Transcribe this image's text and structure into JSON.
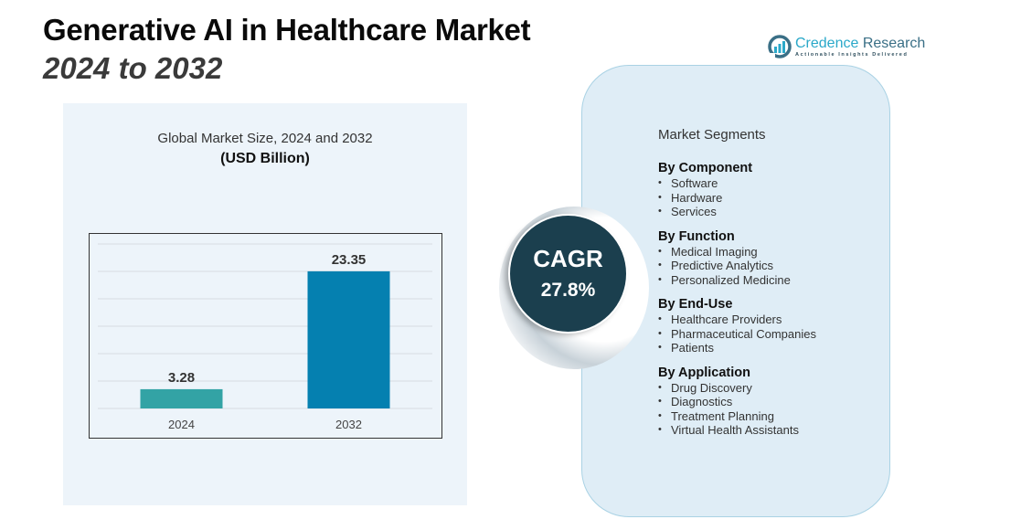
{
  "header": {
    "title": "Generative AI in Healthcare Market",
    "subtitle": "2024 to 2032"
  },
  "logo": {
    "name_part1": "Credence",
    "name_part2": " Research",
    "tagline": "Actionable Insights Delivered",
    "icon": "bar-chart-logo-icon",
    "colors": {
      "primary": "#2aa8c9",
      "secondary": "#3a6f86"
    }
  },
  "chart_data": {
    "type": "bar",
    "title": "Global Market Size, 2024 and 2032",
    "unit_label": "(USD Billion)",
    "categories": [
      "2024",
      "2032"
    ],
    "values": [
      3.28,
      23.35
    ],
    "data_labels": [
      "3.28",
      "23.35"
    ],
    "colors": [
      "#33a3a5",
      "#0580b0"
    ],
    "xlabel": "",
    "ylabel": "",
    "ylim": [
      0,
      28
    ],
    "grid": true,
    "legend": "none"
  },
  "cagr": {
    "label": "CAGR",
    "value": "27.8%"
  },
  "segments": {
    "heading": "Market Segments",
    "groups": [
      {
        "title": "By Component",
        "items": [
          "Software",
          "Hardware",
          "Services"
        ]
      },
      {
        "title": "By Function",
        "items": [
          "Medical Imaging",
          "Predictive Analytics",
          "Personalized Medicine"
        ]
      },
      {
        "title": "By End-Use",
        "items": [
          "Healthcare Providers",
          "Pharmaceutical Companies",
          "Patients"
        ]
      },
      {
        "title": "By Application",
        "items": [
          "Drug Discovery",
          "Diagnostics",
          "Treatment Planning",
          "Virtual Health Assistants"
        ]
      }
    ]
  }
}
